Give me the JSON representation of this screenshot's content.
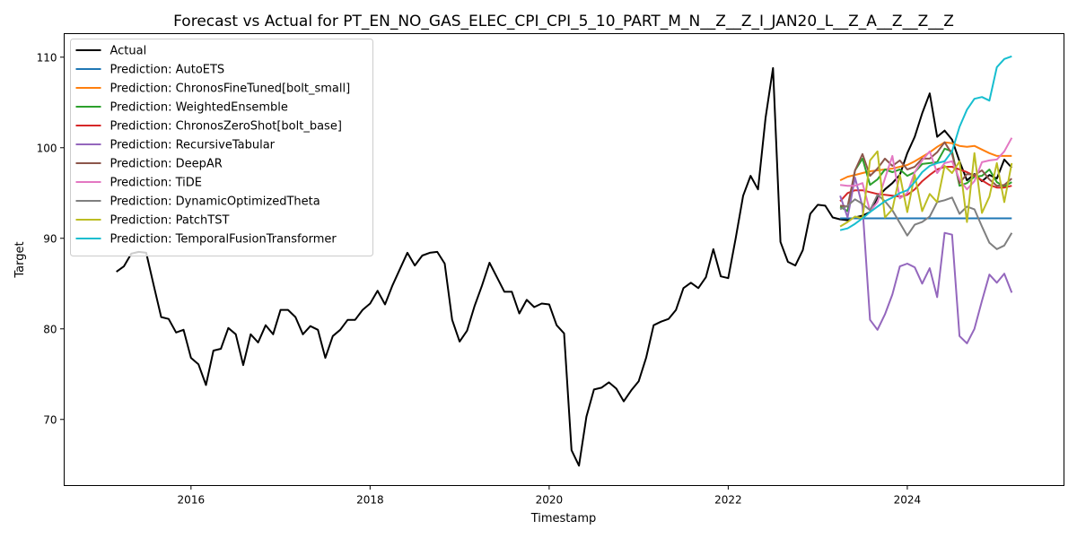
{
  "chart_data": {
    "type": "line",
    "title": "Forecast vs Actual for PT_EN_NO_GAS_ELEC_CPI_CPI_5_10_PART_M_N__Z__Z_I_JAN20_L__Z_A__Z__Z__Z",
    "xlabel": "Timestamp",
    "ylabel": "Target",
    "xlim": [
      "2014-08-01",
      "2025-10-01"
    ],
    "ylim": [
      62.7,
      112.6
    ],
    "x_ticks": [
      {
        "label": "2016",
        "date": "2016-01-01"
      },
      {
        "label": "2018",
        "date": "2018-01-01"
      },
      {
        "label": "2020",
        "date": "2020-01-01"
      },
      {
        "label": "2022",
        "date": "2022-01-01"
      },
      {
        "label": "2024",
        "date": "2024-01-01"
      }
    ],
    "y_ticks": [
      70,
      80,
      90,
      100,
      110
    ],
    "legend_position": "upper-left",
    "grid": false,
    "actual": {
      "name": "Actual",
      "color": "#000000",
      "start": "2015-03",
      "values": [
        86.3,
        86.9,
        88.3,
        88.5,
        88.4,
        84.8,
        81.3,
        81.1,
        79.6,
        79.9,
        76.8,
        76.1,
        73.8,
        77.6,
        77.8,
        80.1,
        79.4,
        76.0,
        79.4,
        78.5,
        80.4,
        79.4,
        82.1,
        82.1,
        81.3,
        79.4,
        80.3,
        79.9,
        76.8,
        79.2,
        79.9,
        81.0,
        81.0,
        82.1,
        82.8,
        84.2,
        82.7,
        84.8,
        86.6,
        88.4,
        87.0,
        88.1,
        88.4,
        88.5,
        87.2,
        81.0,
        78.6,
        79.8,
        82.5,
        84.8,
        87.3,
        85.7,
        84.1,
        84.1,
        81.7,
        83.2,
        82.4,
        82.8,
        82.7,
        80.4,
        79.5,
        66.6,
        64.9,
        70.3,
        73.3,
        73.5,
        74.1,
        73.4,
        72.0,
        73.2,
        74.2,
        76.8,
        80.4,
        80.8,
        81.1,
        82.1,
        84.5,
        85.1,
        84.5,
        85.7,
        88.8,
        85.8,
        85.6,
        90.0,
        94.7,
        96.9,
        95.4,
        103.3,
        108.8,
        89.6,
        87.4,
        87.0,
        88.7,
        92.7,
        93.7,
        93.6,
        92.3,
        92.1,
        92.0,
        92.3,
        92.5,
        92.9,
        94.5,
        95.4,
        96.1,
        97.0,
        99.4,
        101.2,
        103.8,
        106.0,
        101.2,
        101.9,
        100.9,
        98.5,
        96.4,
        97.1,
        96.3,
        97.0,
        96.6,
        98.7,
        97.8
      ]
    },
    "forecast_start": "2023-04",
    "series": [
      {
        "name": "Prediction: AutoETS",
        "color": "#1f77b4",
        "values": [
          92.2,
          92.2,
          92.2,
          92.2,
          92.2,
          92.2,
          92.2,
          92.2,
          92.2,
          92.2,
          92.2,
          92.2,
          92.2,
          92.2,
          92.2,
          92.2,
          92.2,
          92.2,
          92.2,
          92.2,
          92.2,
          92.2,
          92.2,
          92.2
        ]
      },
      {
        "name": "Prediction: ChronosFineTuned[bolt_small]",
        "color": "#ff7f0e",
        "values": [
          96.4,
          96.8,
          97.0,
          97.2,
          97.4,
          97.5,
          97.6,
          97.7,
          97.9,
          98.1,
          98.5,
          99.0,
          99.5,
          100.1,
          100.6,
          100.5,
          100.2,
          100.1,
          100.2,
          99.8,
          99.4,
          99.1,
          99.1,
          99.1
        ]
      },
      {
        "name": "Prediction: WeightedEnsemble",
        "color": "#2ca02c",
        "values": [
          93.5,
          93.0,
          97.5,
          98.8,
          95.9,
          96.5,
          97.6,
          97.3,
          97.6,
          96.9,
          97.3,
          98.2,
          98.3,
          98.4,
          99.9,
          99.6,
          95.8,
          96.1,
          96.8,
          96.9,
          97.6,
          96.2,
          95.7,
          96.2
        ]
      },
      {
        "name": "Prediction: ChronosZeroShot[bolt_base]",
        "color": "#d62728",
        "values": [
          94.1,
          95.0,
          95.3,
          95.3,
          95.1,
          94.9,
          94.8,
          94.7,
          94.6,
          94.8,
          95.4,
          96.3,
          97.0,
          97.6,
          97.9,
          97.9,
          97.6,
          97.3,
          96.9,
          96.4,
          95.9,
          95.6,
          95.6,
          95.8
        ]
      },
      {
        "name": "Prediction: RecursiveTabular",
        "color": "#9467bd",
        "values": [
          94.7,
          92.3,
          96.7,
          93.5,
          81.0,
          79.9,
          81.6,
          83.8,
          86.9,
          87.2,
          86.8,
          85.0,
          86.7,
          83.5,
          90.6,
          90.4,
          79.2,
          78.4,
          80.0,
          83.1,
          86.0,
          85.1,
          86.1,
          84.0
        ]
      },
      {
        "name": "Prediction: DeepAR",
        "color": "#8c564b",
        "values": [
          93.6,
          93.5,
          97.5,
          99.3,
          96.9,
          97.7,
          98.8,
          98.0,
          98.6,
          97.6,
          97.9,
          98.8,
          98.8,
          99.5,
          100.6,
          99.3,
          96.1,
          97.1,
          97.0,
          97.5,
          96.5,
          95.8,
          95.9,
          96.6
        ]
      },
      {
        "name": "Prediction: TiDE",
        "color": "#e377c2",
        "values": [
          95.9,
          95.8,
          95.8,
          96.1,
          93.0,
          94.0,
          96.6,
          99.1,
          94.4,
          95.0,
          97.3,
          98.6,
          99.6,
          97.2,
          98.3,
          98.5,
          96.5,
          95.4,
          96.3,
          98.4,
          98.6,
          98.7,
          99.6,
          101.1
        ]
      },
      {
        "name": "Prediction: DynamicOptimizedTheta",
        "color": "#7f7f7f",
        "values": [
          93.2,
          93.6,
          94.3,
          93.8,
          93.1,
          94.8,
          94.1,
          93.1,
          91.7,
          90.3,
          91.5,
          91.8,
          92.4,
          94.0,
          94.2,
          94.5,
          92.7,
          93.5,
          93.2,
          91.3,
          89.5,
          88.8,
          89.2,
          90.6
        ]
      },
      {
        "name": "Prediction: PatchTST",
        "color": "#bcbd22",
        "values": [
          91.3,
          91.8,
          92.4,
          92.2,
          98.6,
          99.6,
          92.3,
          93.2,
          97.0,
          92.9,
          97.0,
          93.0,
          94.9,
          94.0,
          98.0,
          97.2,
          98.5,
          91.8,
          99.4,
          92.8,
          94.6,
          98.3,
          94.0,
          98.3
        ]
      },
      {
        "name": "Prediction: TemporalFusionTransformer",
        "color": "#17becf",
        "values": [
          90.9,
          91.1,
          91.6,
          92.2,
          92.9,
          93.5,
          94.1,
          94.5,
          95.0,
          95.3,
          96.2,
          97.3,
          98.0,
          98.3,
          98.5,
          99.6,
          102.3,
          104.2,
          105.4,
          105.6,
          105.2,
          108.9,
          109.8,
          110.1
        ]
      }
    ]
  }
}
